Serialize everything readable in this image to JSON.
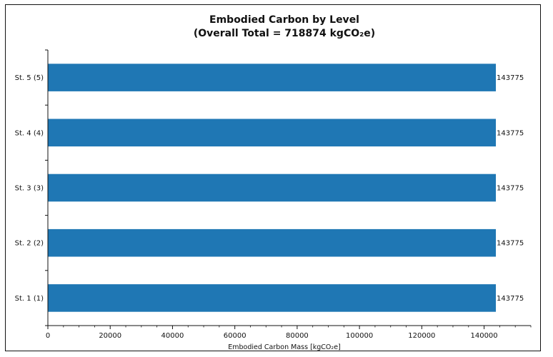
{
  "chart_data": {
    "type": "bar",
    "orientation": "horizontal",
    "title_line1": "Embodied Carbon by Level",
    "title_line2": "(Overall Total = 718874 kgCO₂e)",
    "xlabel": "Embodied Carbon Mass [kgCO₂e]",
    "ylabel": "",
    "xlim": [
      0,
      155000
    ],
    "xticks": [
      0,
      20000,
      40000,
      60000,
      80000,
      100000,
      120000,
      140000
    ],
    "categories": [
      "St. 1 (1)",
      "St. 2 (2)",
      "St. 3 (3)",
      "St. 4 (4)",
      "St. 5 (5)"
    ],
    "values": [
      143775,
      143775,
      143775,
      143775,
      143775
    ],
    "value_labels": [
      "143775",
      "143775",
      "143775",
      "143775",
      "143775"
    ],
    "bar_color": "#1f77b4",
    "grid": false,
    "legend": "none"
  }
}
